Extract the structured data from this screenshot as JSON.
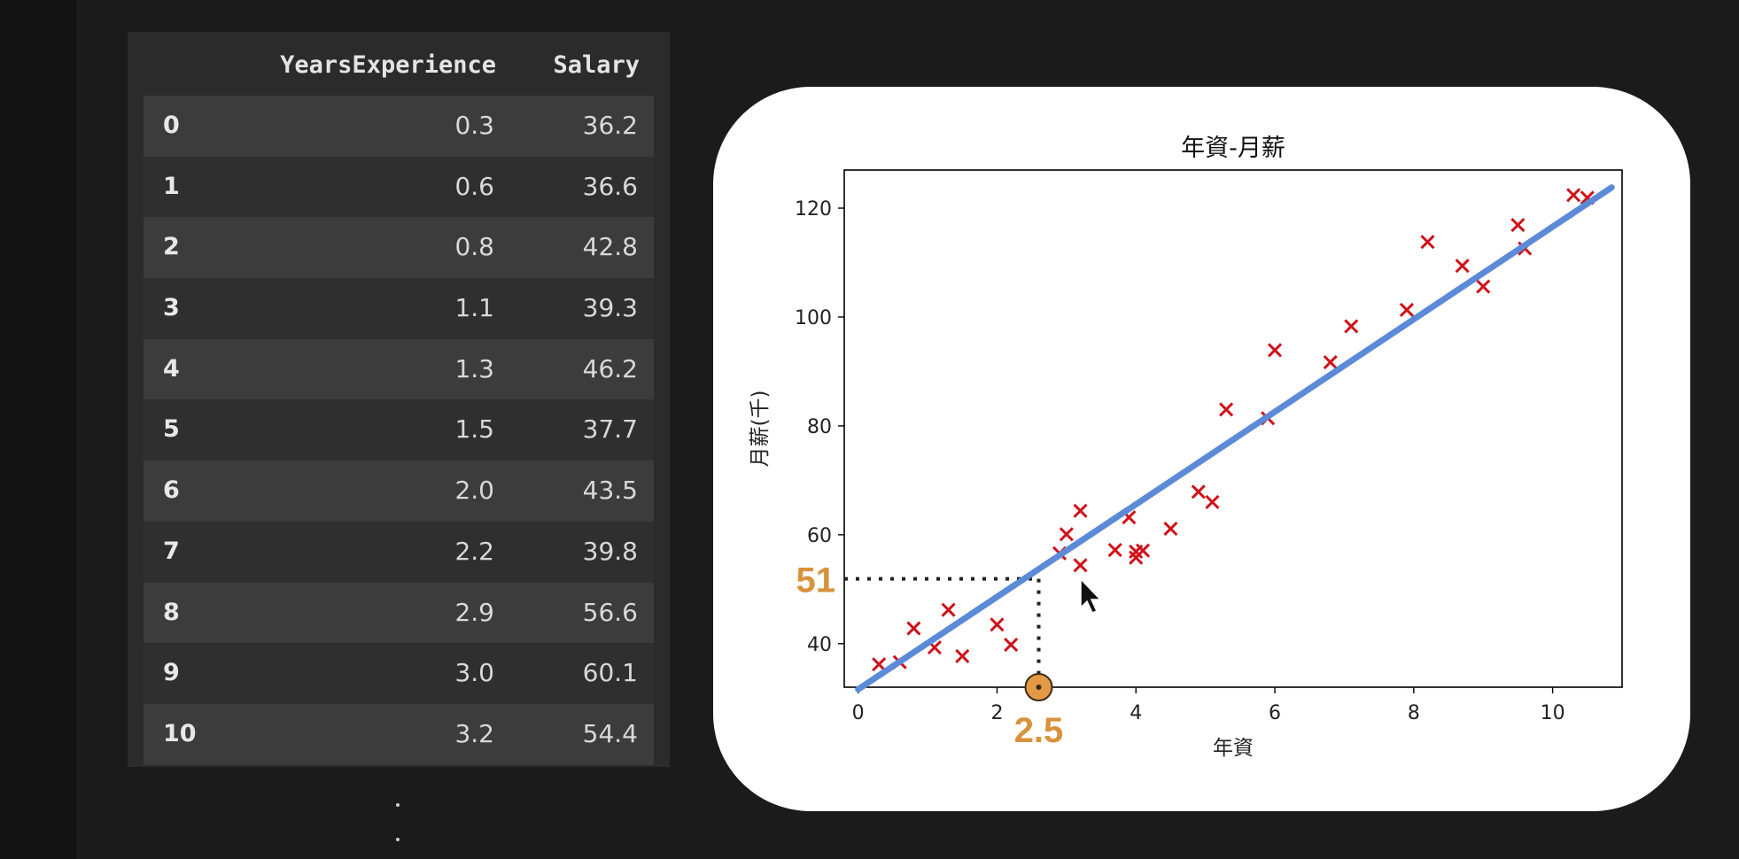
{
  "table": {
    "columns": [
      "",
      "YearsExperience",
      "Salary"
    ],
    "rows": [
      {
        "index": "0",
        "x": "0.3",
        "y": "36.2"
      },
      {
        "index": "1",
        "x": "0.6",
        "y": "36.6"
      },
      {
        "index": "2",
        "x": "0.8",
        "y": "42.8"
      },
      {
        "index": "3",
        "x": "1.1",
        "y": "39.3"
      },
      {
        "index": "4",
        "x": "1.3",
        "y": "46.2"
      },
      {
        "index": "5",
        "x": "1.5",
        "y": "37.7"
      },
      {
        "index": "6",
        "x": "2.0",
        "y": "43.5"
      },
      {
        "index": "7",
        "x": "2.2",
        "y": "39.8"
      },
      {
        "index": "8",
        "x": "2.9",
        "y": "56.6"
      },
      {
        "index": "9",
        "x": "3.0",
        "y": "60.1"
      },
      {
        "index": "10",
        "x": "3.2",
        "y": "54.4"
      }
    ]
  },
  "chart_data": {
    "type": "scatter",
    "title": "年資-月薪",
    "xlabel": "年資",
    "ylabel": "月薪(千)",
    "xlim": [
      -0.2,
      11.0
    ],
    "ylim": [
      32,
      127
    ],
    "xticks": [
      0,
      2,
      4,
      6,
      8,
      10
    ],
    "yticks": [
      40,
      60,
      80,
      100,
      120
    ],
    "grid": false,
    "marker": "x",
    "marker_color": "#d0121a",
    "line_color": "#5b8ad8",
    "points": [
      {
        "x": 0.3,
        "y": 36.2
      },
      {
        "x": 0.6,
        "y": 36.6
      },
      {
        "x": 0.8,
        "y": 42.8
      },
      {
        "x": 1.1,
        "y": 39.3
      },
      {
        "x": 1.3,
        "y": 46.2
      },
      {
        "x": 1.5,
        "y": 37.7
      },
      {
        "x": 2.0,
        "y": 43.5
      },
      {
        "x": 2.2,
        "y": 39.8
      },
      {
        "x": 2.9,
        "y": 56.6
      },
      {
        "x": 3.0,
        "y": 60.1
      },
      {
        "x": 3.2,
        "y": 54.4
      },
      {
        "x": 3.2,
        "y": 64.4
      },
      {
        "x": 3.7,
        "y": 57.2
      },
      {
        "x": 3.9,
        "y": 63.2
      },
      {
        "x": 4.0,
        "y": 55.8
      },
      {
        "x": 4.0,
        "y": 56.9
      },
      {
        "x": 4.1,
        "y": 57.1
      },
      {
        "x": 4.5,
        "y": 61.1
      },
      {
        "x": 4.9,
        "y": 67.9
      },
      {
        "x": 5.1,
        "y": 66.0
      },
      {
        "x": 5.3,
        "y": 83.0
      },
      {
        "x": 5.9,
        "y": 81.4
      },
      {
        "x": 6.0,
        "y": 93.9
      },
      {
        "x": 6.8,
        "y": 91.7
      },
      {
        "x": 7.1,
        "y": 98.3
      },
      {
        "x": 7.9,
        "y": 101.3
      },
      {
        "x": 8.2,
        "y": 113.8
      },
      {
        "x": 8.7,
        "y": 109.4
      },
      {
        "x": 9.0,
        "y": 105.6
      },
      {
        "x": 9.5,
        "y": 116.9
      },
      {
        "x": 9.6,
        "y": 112.6
      },
      {
        "x": 10.3,
        "y": 122.4
      },
      {
        "x": 10.5,
        "y": 121.9
      }
    ],
    "fit_line": {
      "x": [
        0.0,
        10.85
      ],
      "y": [
        31.6,
        123.8
      ]
    },
    "annotation": {
      "x": 2.6,
      "y": 51.9,
      "x_label": "2.5",
      "y_label": "51"
    }
  }
}
